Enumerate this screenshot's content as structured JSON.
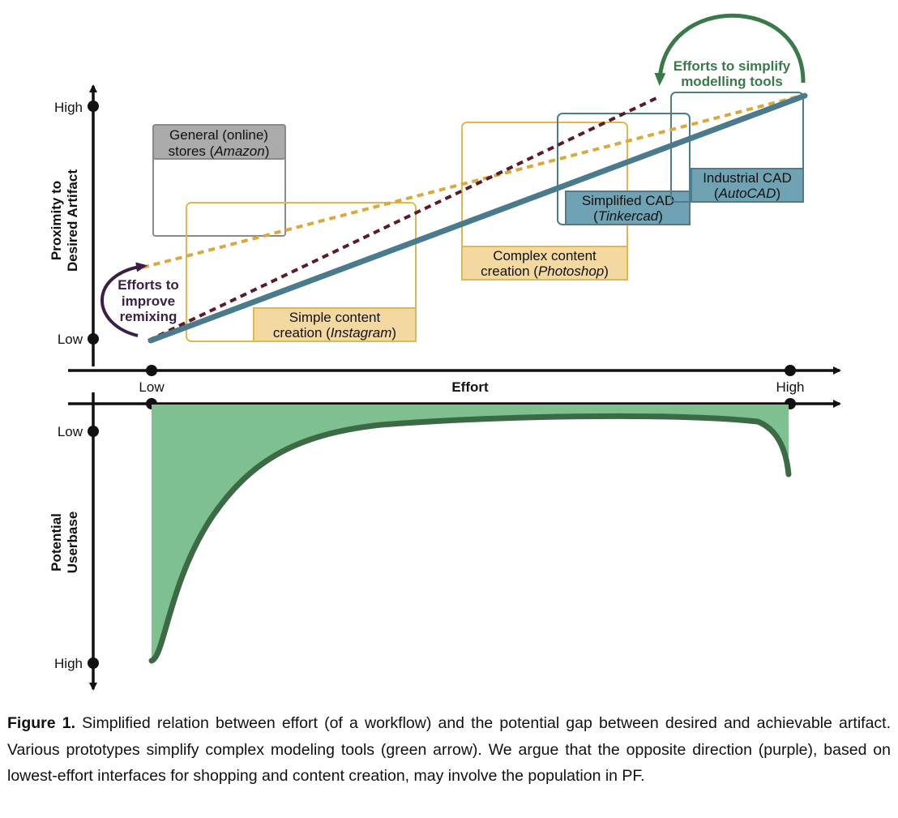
{
  "figure": {
    "top_chart": {
      "y_axis_label_line1": "Proximity to",
      "y_axis_label_line2": "Desired Artifact",
      "y_tick_high": "High",
      "y_tick_low": "Low"
    },
    "x_axis": {
      "label": "Effort",
      "tick_low": "Low",
      "tick_high": "High"
    },
    "bottom_chart": {
      "y_axis_label_line1": "Potential",
      "y_axis_label_line2": "Userbase",
      "y_tick_low": "Low",
      "y_tick_high": "High",
      "fill_color": "#7fc090",
      "curve_color": "#3a6b45"
    },
    "boxes": {
      "amazon": {
        "line1": "General (online)",
        "line2_prefix": "stores (",
        "line2_italic": "Amazon",
        "line2_suffix": ")",
        "color": "#8a8a8a",
        "fill": "#ababab"
      },
      "instagram": {
        "line1": "Simple content",
        "line2_prefix": "creation (",
        "line2_italic": "Instagram",
        "line2_suffix": ")",
        "color": "#e0b84f",
        "fill": "#f3d9a0"
      },
      "photoshop": {
        "line1": "Complex content",
        "line2_prefix": "creation (",
        "line2_italic": "Photoshop",
        "line2_suffix": ")",
        "color": "#e0b84f",
        "fill": "#f3d9a0"
      },
      "tinkercad": {
        "line1": "Simplified CAD",
        "line2_prefix": "(",
        "line2_italic": "Tinkercad",
        "line2_suffix": ")",
        "color": "#4d7d8d",
        "fill": "#6fa3b4"
      },
      "autocad": {
        "line1": "Industrial CAD",
        "line2_prefix": "(",
        "line2_italic": "AutoCAD",
        "line2_suffix": ")",
        "color": "#4d7d8d",
        "fill": "#6fa3b4"
      }
    },
    "annotations": {
      "remix_line1": "Efforts to",
      "remix_line2": "improve",
      "remix_line3": "remixing",
      "remix_color": "#3b1f47",
      "simplify_line1": "Efforts to simplify",
      "simplify_line2": "modelling tools",
      "simplify_color": "#3a7a48"
    },
    "lines": {
      "main_color": "#4a7b8c",
      "dashed_dark_color": "#5a1a26",
      "dashed_gold_color": "#d9a93a"
    }
  },
  "caption": {
    "label": "Figure 1.",
    "text": " Simplified relation between effort (of a workflow) and the potential gap between desired and achievable artifact. Various prototypes simplify complex modeling tools (green arrow). We argue that the opposite direction (purple), based on lowest-effort interfaces for shopping and content creation, may involve the population in PF."
  }
}
